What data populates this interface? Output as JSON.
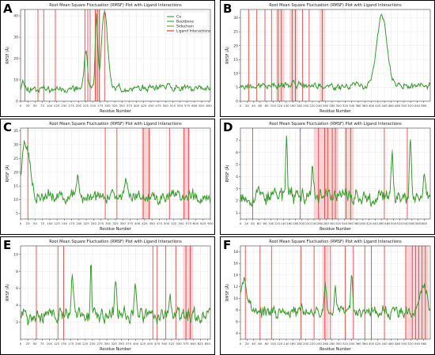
{
  "colors": {
    "calpha": "#2e9e2e",
    "sidechain": "#8a8a2a",
    "ligand": "#e8252a",
    "ligand_band": "#f6b3b3",
    "axis": "#000000"
  },
  "legend": [
    "Cα",
    "Backbone",
    "Sidechain",
    "Ligand Interactions"
  ],
  "chart_data": [
    {
      "panel": "A",
      "type": "line",
      "title": "Root Mean Square Fluctuation (RMSF) Plot with Ligand Interactions",
      "xlabel": "Residue Number",
      "ylabel": "RMSF (Å)",
      "xlim": [
        0,
        655
      ],
      "ylim": [
        0,
        43
      ],
      "yticks": [
        0,
        10,
        20,
        30,
        40
      ],
      "xticks": [
        0,
        25,
        50,
        75,
        100,
        125,
        150,
        175,
        200,
        225,
        250,
        275,
        300,
        325,
        350,
        375,
        400,
        425,
        450,
        475,
        500,
        525,
        550,
        575,
        600,
        625,
        650
      ],
      "base": 6,
      "amp": 2.2,
      "seed": 11,
      "peaks": [
        [
          8,
          5,
          5
        ],
        [
          225,
          18,
          8
        ],
        [
          262,
          34,
          6
        ],
        [
          290,
          37,
          14
        ],
        [
          510,
          3,
          6
        ]
      ],
      "ligand_lines": [
        15,
        60,
        80,
        120,
        222,
        232,
        240,
        258,
        265,
        272,
        290
      ],
      "ligand_bands": [
        [
          255,
          275
        ]
      ],
      "legend_shown": true
    },
    {
      "panel": "B",
      "type": "line",
      "title": "Root Mean Square Fluctuation (RMSF) Plot with Ligand Interactions",
      "xlabel": "Residue Number",
      "ylabel": "RMSF (Å)",
      "xlim": [
        0,
        580
      ],
      "ylim": [
        0,
        33
      ],
      "yticks": [
        0,
        5,
        10,
        15,
        20,
        25,
        30
      ],
      "xticks": [
        0,
        20,
        40,
        60,
        80,
        100,
        120,
        140,
        160,
        180,
        200,
        220,
        240,
        260,
        280,
        300,
        320,
        340,
        360,
        380,
        400,
        420,
        440,
        460,
        480,
        500,
        520,
        540,
        560
      ],
      "base": 5.5,
      "amp": 1.6,
      "seed": 23,
      "peaks": [
        [
          160,
          3,
          6
        ],
        [
          432,
          25,
          22
        ]
      ],
      "ligand_lines": [
        25,
        50,
        75,
        95,
        115,
        125,
        158,
        168,
        190,
        210,
        250
      ],
      "ligand_bands": [
        [
          108,
          135
        ],
        [
          150,
          175
        ],
        [
          242,
          258
        ]
      ],
      "legend_shown": false
    },
    {
      "panel": "C",
      "type": "line",
      "title": "Root Mean Square Fluctuation (RMSF) Plot with Ligand Interactions",
      "xlabel": "Residue Number",
      "ylabel": "RMSF (Å)",
      "xlim": [
        0,
        650
      ],
      "ylim": [
        3,
        36
      ],
      "yticks": [
        5,
        10,
        15,
        20,
        25,
        30,
        35
      ],
      "xticks": [
        0,
        25,
        50,
        75,
        100,
        125,
        150,
        175,
        200,
        225,
        250,
        275,
        300,
        325,
        350,
        375,
        400,
        425,
        450,
        475,
        500,
        525,
        550,
        575,
        600,
        625,
        650
      ],
      "base": 11,
      "amp": 3.2,
      "seed": 37,
      "peaks": [
        [
          12,
          18,
          14
        ],
        [
          30,
          10,
          12
        ],
        [
          195,
          7,
          8
        ],
        [
          360,
          5,
          6
        ]
      ],
      "ligand_lines": [
        25,
        290,
        330,
        420,
        440,
        510,
        560,
        575
      ],
      "ligand_bands": [
        [
          415,
          445
        ],
        [
          555,
          580
        ]
      ],
      "legend_shown": false
    },
    {
      "panel": "D",
      "type": "line",
      "title": "Root Mean Square Fluctuation (RMSF) Plot with Ligand Interactions",
      "xlabel": "Residue Number",
      "ylabel": "RMSF (Å)",
      "xlim": [
        0,
        620
      ],
      "ylim": [
        0.5,
        8
      ],
      "yticks": [
        1,
        2,
        3,
        4,
        5,
        6,
        7
      ],
      "xticks": [
        0,
        20,
        40,
        60,
        80,
        100,
        120,
        140,
        160,
        180,
        200,
        220,
        240,
        260,
        280,
        300,
        320,
        340,
        360,
        380,
        400,
        420,
        440,
        460,
        480,
        500,
        520,
        540,
        560,
        580,
        600
      ],
      "base": 2.4,
      "amp": 0.9,
      "seed": 53,
      "peaks": [
        [
          150,
          4.5,
          4
        ],
        [
          235,
          2.5,
          5
        ],
        [
          495,
          3.6,
          5
        ],
        [
          555,
          4,
          5
        ],
        [
          600,
          2,
          4
        ]
      ],
      "ligand_lines": [
        40,
        195,
        255,
        275,
        285,
        300,
        310,
        345,
        360,
        470,
        545
      ],
      "ligand_bands": [
        [
          240,
          320
        ],
        [
          340,
          370
        ]
      ],
      "legend_shown": false
    },
    {
      "panel": "E",
      "type": "line",
      "title": "Root Mean Square Fluctuation (RMSF) Plot with Ligand Interactions",
      "xlabel": "Residue Number",
      "ylabel": "RMSF (Å)",
      "xlim": [
        0,
        660
      ],
      "ylim": [
        0,
        11
      ],
      "yticks": [
        2,
        4,
        6,
        8,
        10
      ],
      "xticks": [
        0,
        25,
        50,
        75,
        100,
        125,
        150,
        175,
        200,
        225,
        250,
        275,
        300,
        325,
        350,
        375,
        400,
        425,
        450,
        475,
        500,
        525,
        550,
        575,
        600,
        625,
        650
      ],
      "base": 2.8,
      "amp": 1.2,
      "seed": 71,
      "peaks": [
        [
          180,
          4.5,
          6
        ],
        [
          245,
          7,
          3
        ],
        [
          330,
          4,
          5
        ],
        [
          400,
          3,
          6
        ],
        [
          520,
          3,
          5
        ]
      ],
      "ligand_lines": [
        55,
        130,
        150,
        460,
        475,
        505,
        540,
        575,
        590
      ],
      "ligand_bands": [
        [
          565,
          600
        ]
      ],
      "legend_shown": false
    },
    {
      "panel": "F",
      "type": "line",
      "title": "Root Mean Square Fluctuation (RMSF) Plot with Ligand Interactions",
      "xlabel": "Residue Number",
      "ylabel": "RMSF (Å)",
      "xlim": [
        0,
        580
      ],
      "ylim": [
        3,
        19
      ],
      "yticks": [
        4,
        6,
        8,
        10,
        12,
        14,
        16,
        18
      ],
      "xticks": [
        0,
        20,
        40,
        60,
        80,
        100,
        120,
        140,
        160,
        180,
        200,
        220,
        240,
        260,
        280,
        300,
        320,
        340,
        360,
        380,
        400,
        420,
        440,
        460,
        480,
        500,
        520,
        540,
        560
      ],
      "base": 7.6,
      "amp": 1.4,
      "seed": 97,
      "peaks": [
        [
          10,
          6,
          16
        ],
        [
          260,
          5,
          4
        ],
        [
          290,
          4,
          4
        ],
        [
          340,
          6,
          4
        ],
        [
          560,
          5,
          12
        ]
      ],
      "ligand_lines": [
        15,
        60,
        95,
        185,
        225,
        258,
        275,
        320,
        345,
        380,
        400,
        440,
        505,
        525,
        535,
        545,
        555,
        565
      ],
      "ligand_bands": [
        [
          505,
          575
        ],
        [
          250,
          270
        ]
      ],
      "legend_shown": false
    }
  ]
}
